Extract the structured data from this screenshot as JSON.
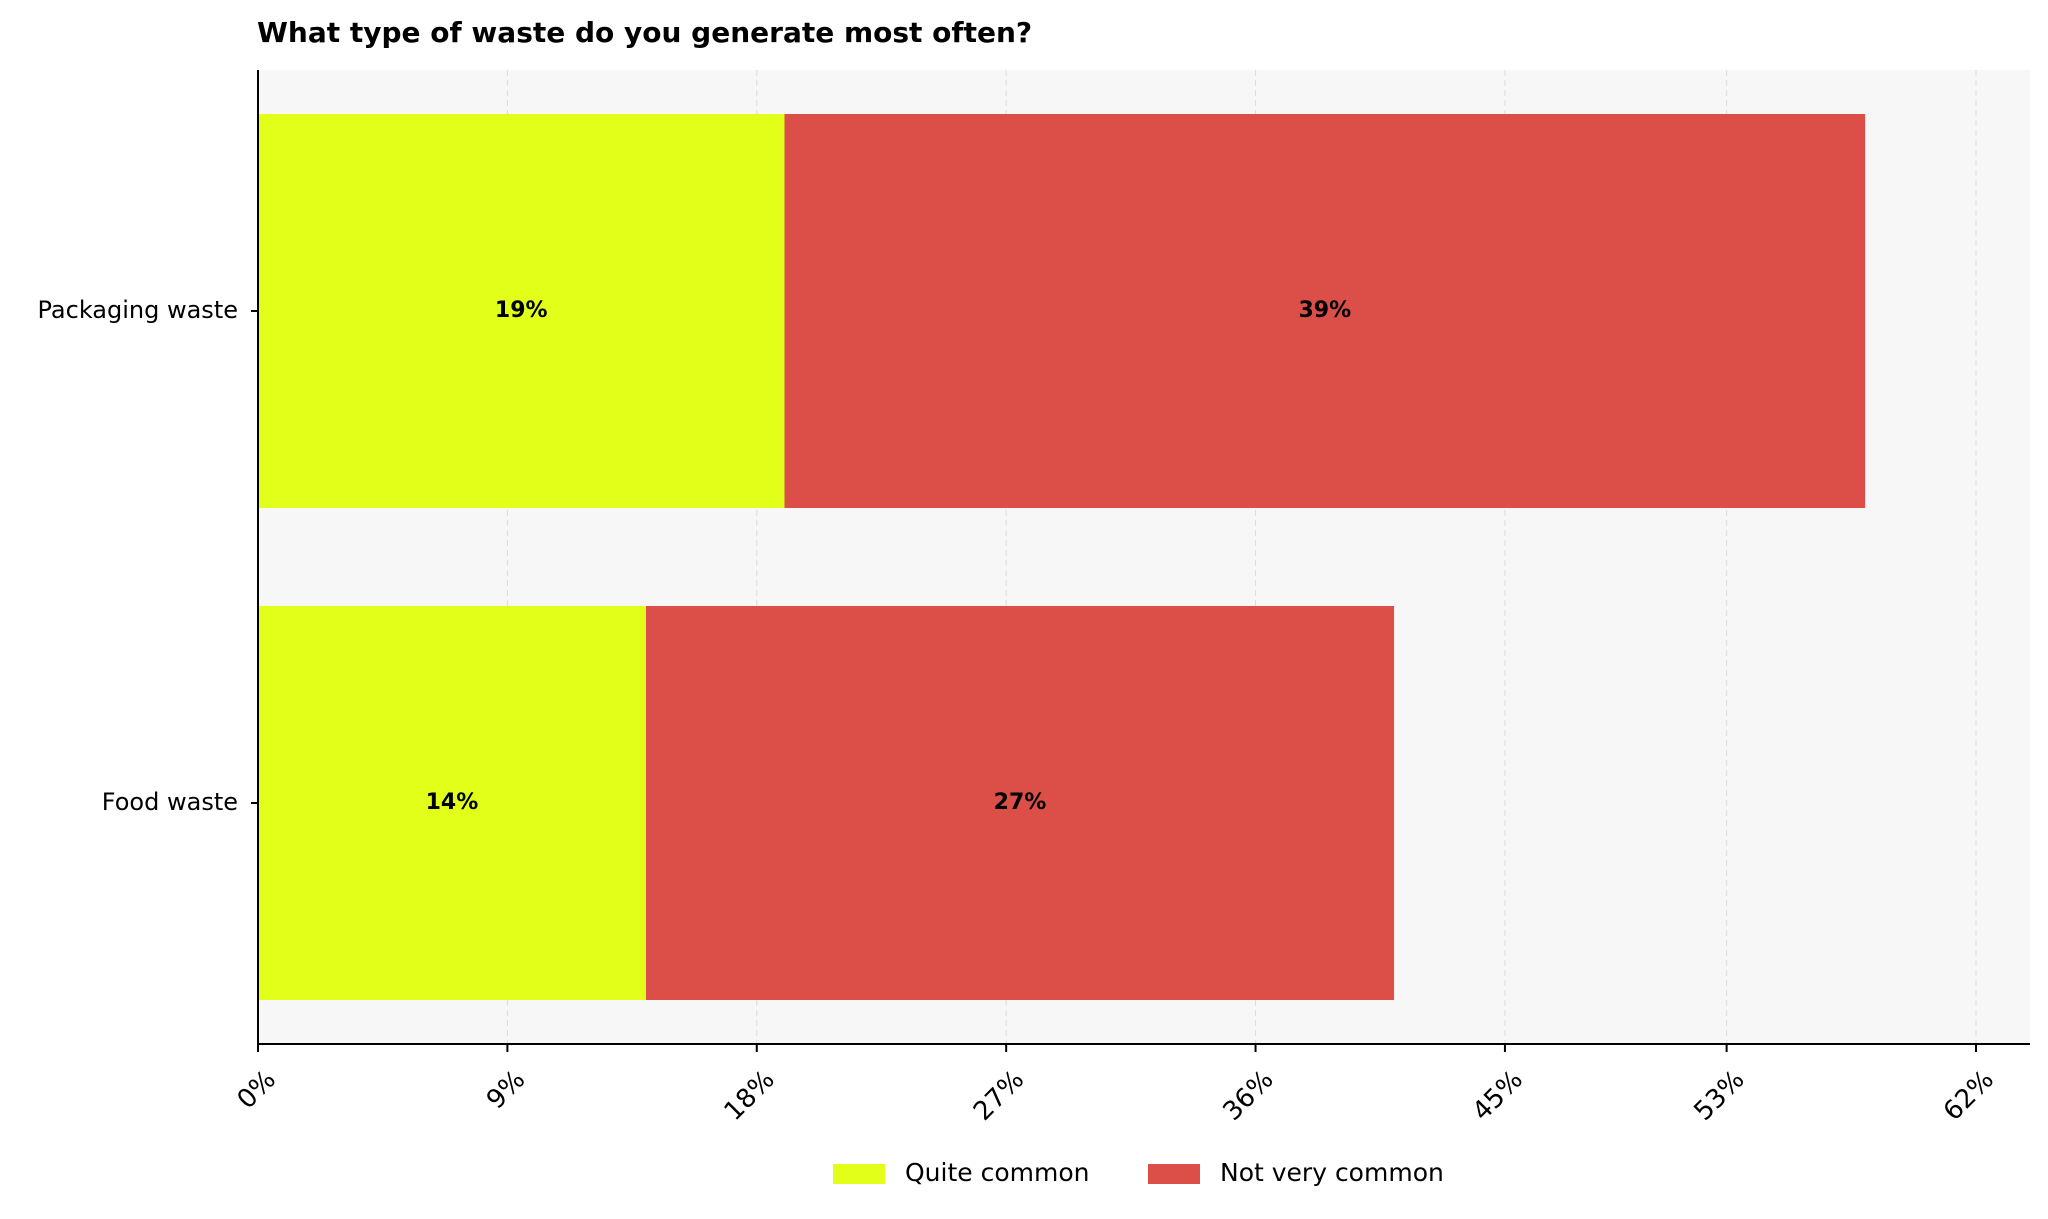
{
  "chart_data": {
    "type": "bar",
    "orientation": "horizontal",
    "stacked": true,
    "title": "What type of waste do you generate most often?",
    "categories": [
      "Packaging waste",
      "Food waste"
    ],
    "series": [
      {
        "name": "Quite common",
        "color": "#e2ff1a",
        "values": [
          19,
          14
        ],
        "labels": [
          "19%",
          "14%"
        ]
      },
      {
        "name": "Not very common",
        "color": "#dc4e48",
        "values": [
          39,
          27
        ],
        "labels": [
          "39%",
          "27%"
        ]
      }
    ],
    "xlim": [
      0,
      62
    ],
    "xticks": [
      0,
      9,
      18,
      27,
      36,
      45,
      53,
      62
    ],
    "xtick_labels": [
      "0%",
      "9%",
      "18%",
      "27%",
      "36%",
      "45%",
      "53%",
      "62%"
    ],
    "grid": "vertical-dashed",
    "legend_position": "bottom-center",
    "plot_background": "#f7f7f7"
  }
}
